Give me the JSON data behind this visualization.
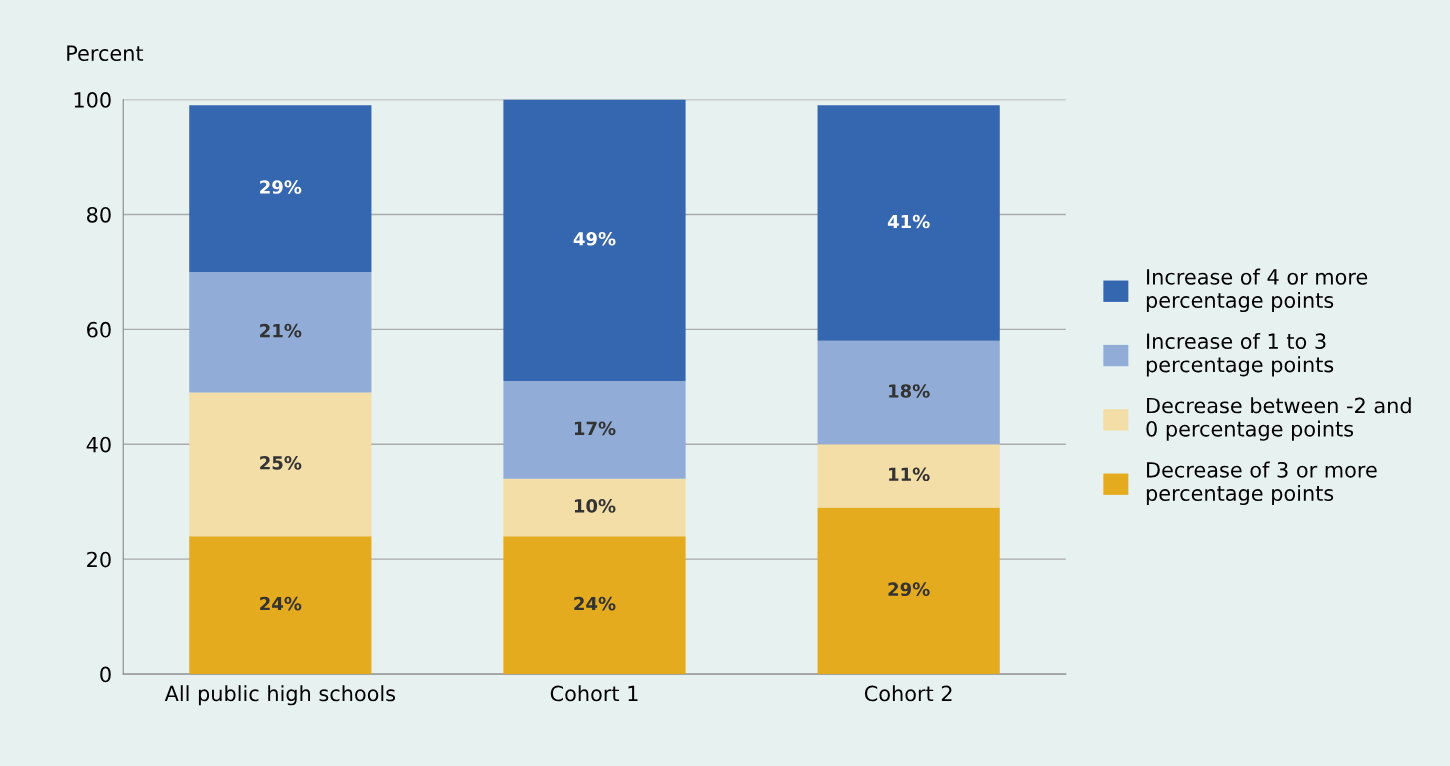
{
  "chart_data": {
    "type": "bar",
    "stacked": true,
    "ylabel": "Percent",
    "categories": [
      "All public high schools",
      "Cohort 1",
      "Cohort 2"
    ],
    "series": [
      {
        "name": "Decrease of 3 or more percentage points",
        "color": "#e5ab1f",
        "values": [
          24,
          24,
          29
        ],
        "value_labels": [
          "24%",
          "24%",
          "29%"
        ]
      },
      {
        "name": "Decrease between -2 and 0 percentage points",
        "color": "#f3dea8",
        "values": [
          25,
          10,
          11
        ],
        "value_labels": [
          "25%",
          "10%",
          "11%"
        ]
      },
      {
        "name": "Increase of 1 to 3 percentage points",
        "color": "#91acd6",
        "values": [
          21,
          17,
          18
        ],
        "value_labels": [
          "21%",
          "17%",
          "18%"
        ]
      },
      {
        "name": "Increase of 4 or more percentage points",
        "color": "#3566b0",
        "values": [
          29,
          49,
          41
        ],
        "value_labels": [
          "29%",
          "49%",
          "41%"
        ]
      }
    ],
    "ylim": [
      0,
      100
    ],
    "yticks": [
      0,
      20,
      40,
      60,
      80,
      100
    ],
    "grid": "y",
    "legend": "right"
  }
}
